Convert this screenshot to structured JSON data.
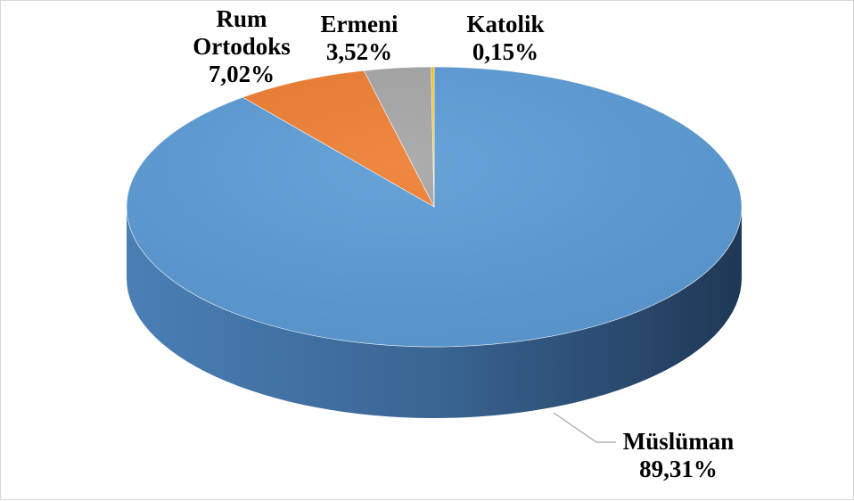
{
  "chart_data": {
    "type": "pie",
    "title": "",
    "style": "3d",
    "start_angle_deg": 0,
    "direction": "clockwise",
    "slices": [
      {
        "label_lines": [
          "Müslüman"
        ],
        "value_label": "89,31%",
        "value": 89.31,
        "color": "#5b9bd5"
      },
      {
        "label_lines": [
          "Rum",
          "Ortodoks"
        ],
        "value_label": "7,02%",
        "value": 7.02,
        "color": "#ed7d31"
      },
      {
        "label_lines": [
          "Ermeni"
        ],
        "value_label": "3,52%",
        "value": 3.52,
        "color": "#a5a5a5"
      },
      {
        "label_lines": [
          "Katolik"
        ],
        "value_label": "0,15%",
        "value": 0.15,
        "color": "#ffc000"
      }
    ],
    "legend": "none"
  }
}
